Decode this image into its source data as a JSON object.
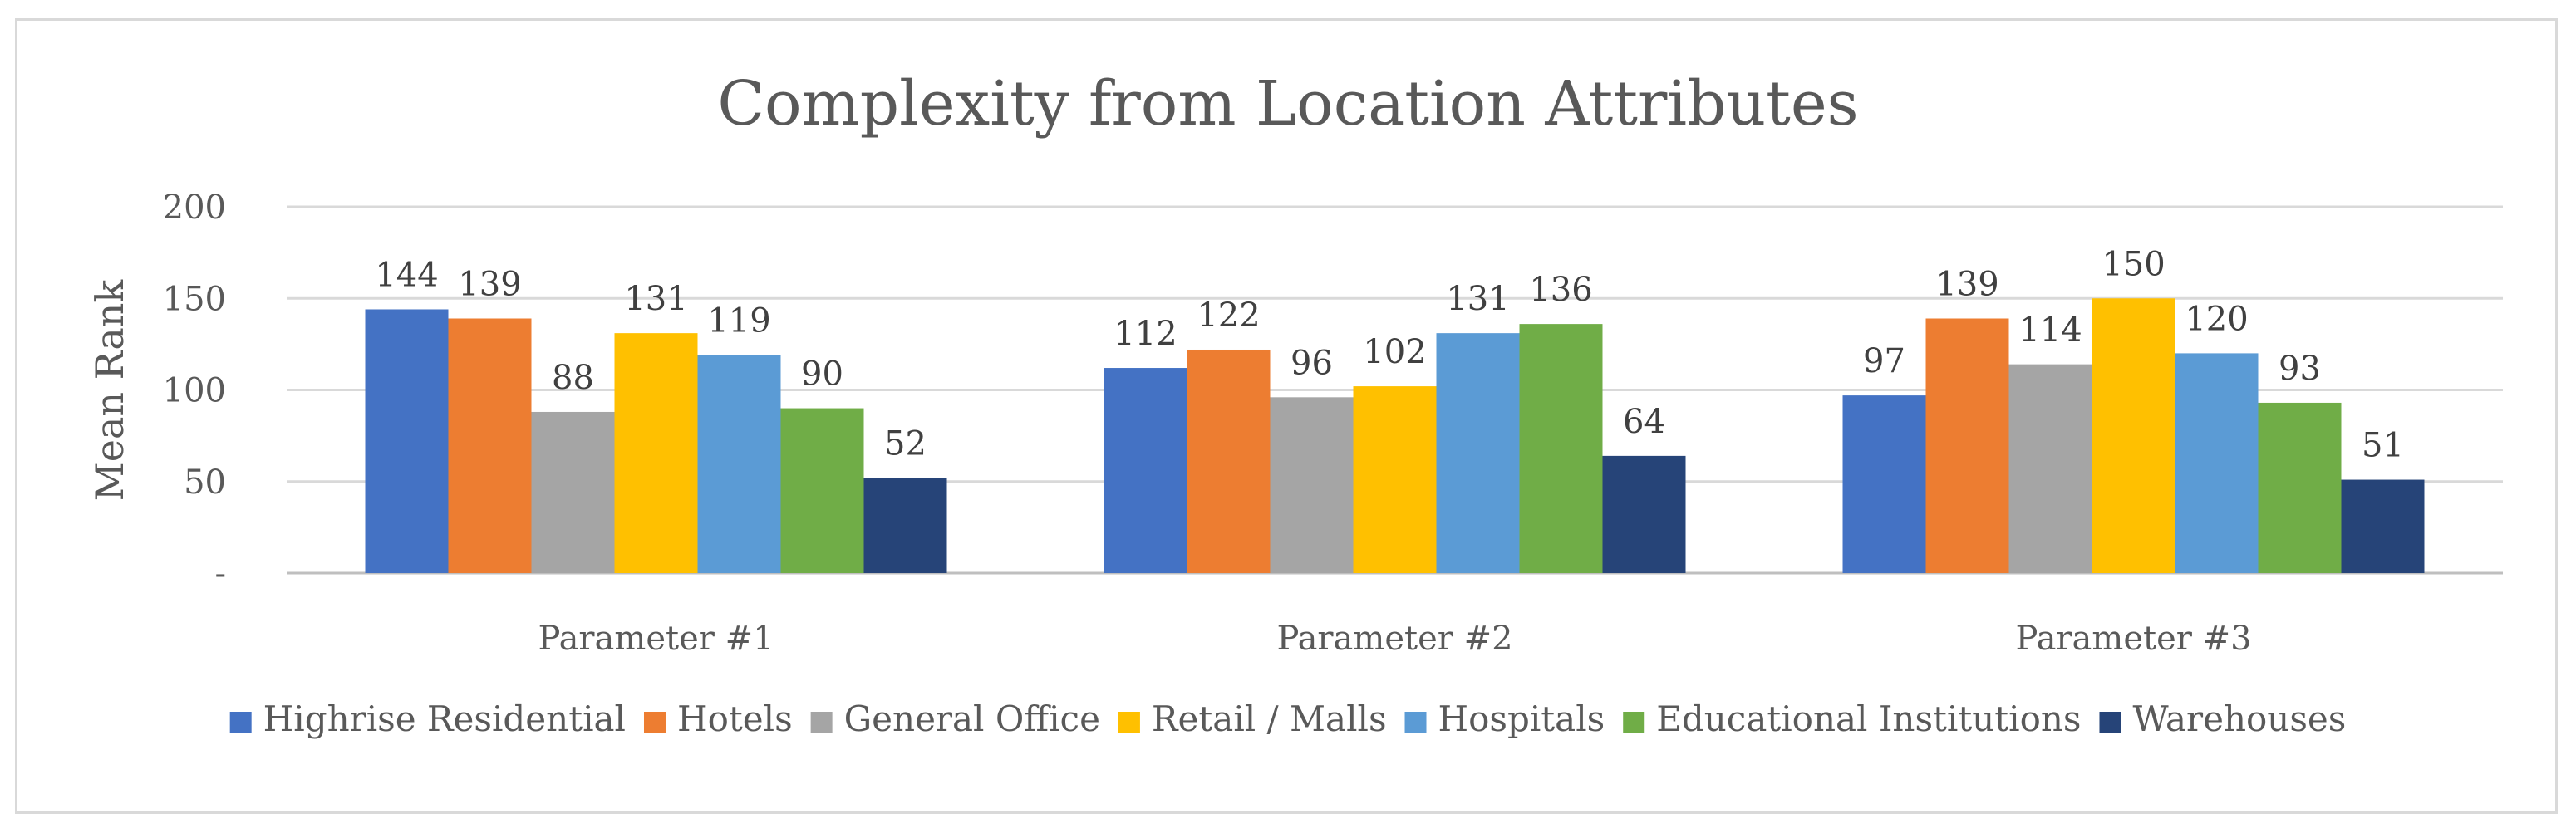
{
  "chart_data": {
    "type": "bar",
    "title": "Complexity from Location Attributes",
    "xlabel": "",
    "ylabel": "Mean Rank",
    "ylim": [
      0,
      200
    ],
    "yticks": [
      {
        "value": 0,
        "label": "-"
      },
      {
        "value": 50,
        "label": "50"
      },
      {
        "value": 100,
        "label": "100"
      },
      {
        "value": 150,
        "label": "150"
      },
      {
        "value": 200,
        "label": "200"
      }
    ],
    "grid": true,
    "legend_position": "bottom",
    "categories": [
      "Parameter #1",
      "Parameter #2",
      "Parameter #3"
    ],
    "series": [
      {
        "name": "Highrise Residential",
        "color": "#4472C4",
        "values": [
          144,
          112,
          97
        ]
      },
      {
        "name": "Hotels",
        "color": "#ED7D31",
        "values": [
          139,
          122,
          139
        ]
      },
      {
        "name": "General Office",
        "color": "#A5A5A5",
        "values": [
          88,
          96,
          114
        ]
      },
      {
        "name": "Retail / Malls",
        "color": "#FFC000",
        "values": [
          131,
          102,
          150
        ]
      },
      {
        "name": "Hospitals",
        "color": "#5B9BD5",
        "values": [
          119,
          131,
          120
        ]
      },
      {
        "name": "Educational Institutions",
        "color": "#70AD47",
        "values": [
          90,
          136,
          93
        ]
      },
      {
        "name": "Warehouses",
        "color": "#264478",
        "values": [
          52,
          64,
          51
        ]
      }
    ]
  }
}
